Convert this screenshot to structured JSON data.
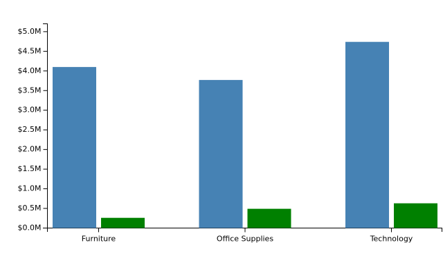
{
  "chart_data": {
    "type": "bar",
    "categories": [
      "Furniture",
      "Office Supplies",
      "Technology"
    ],
    "series": [
      {
        "color": "#4682b4",
        "values": [
          4100000,
          3770000,
          4740000
        ]
      },
      {
        "color": "#008000",
        "values": [
          260000,
          490000,
          630000
        ]
      }
    ],
    "ylim": [
      0,
      5200000
    ],
    "yticks": [
      {
        "value": 0,
        "label": "$0.0M"
      },
      {
        "value": 500000,
        "label": "$0.5M"
      },
      {
        "value": 1000000,
        "label": "$1.0M"
      },
      {
        "value": 1500000,
        "label": "$1.5M"
      },
      {
        "value": 2000000,
        "label": "$2.0M"
      },
      {
        "value": 2500000,
        "label": "$2.5M"
      },
      {
        "value": 3000000,
        "label": "$3.0M"
      },
      {
        "value": 3500000,
        "label": "$3.5M"
      },
      {
        "value": 4000000,
        "label": "$4.0M"
      },
      {
        "value": 4500000,
        "label": "$4.5M"
      },
      {
        "value": 5000000,
        "label": "$5.0M"
      }
    ]
  }
}
